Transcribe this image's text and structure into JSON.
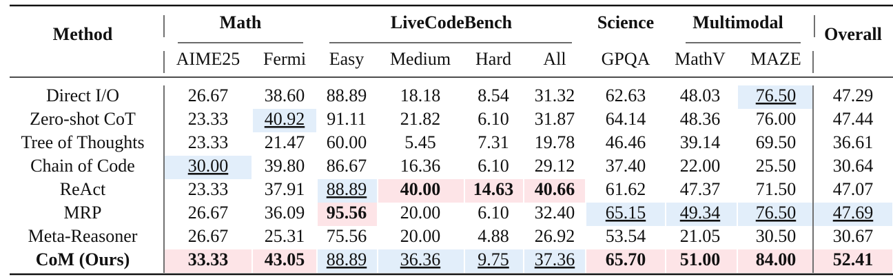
{
  "table": {
    "header": {
      "method": "Method",
      "overall": "Overall",
      "groups": [
        {
          "label": "Math"
        },
        {
          "label": "LiveCodeBench"
        },
        {
          "label": "Science"
        },
        {
          "label": "Multimodal"
        }
      ],
      "columns": [
        "AIME25",
        "Fermi",
        "Easy",
        "Medium",
        "Hard",
        "All",
        "GPQA",
        "MathV",
        "MAZE"
      ]
    },
    "rows": [
      {
        "method": "Direct I/O",
        "values": [
          "26.67",
          "38.60",
          "88.89",
          "18.18",
          "8.54",
          "31.32",
          "62.63",
          "48.03",
          "76.50",
          "47.29"
        ]
      },
      {
        "method": "Zero-shot CoT",
        "values": [
          "23.33",
          "40.92",
          "91.11",
          "21.82",
          "6.10",
          "31.87",
          "64.14",
          "48.36",
          "76.00",
          "47.44"
        ]
      },
      {
        "method": "Tree of Thoughts",
        "values": [
          "23.33",
          "21.47",
          "60.00",
          "5.45",
          "7.31",
          "19.78",
          "46.46",
          "39.14",
          "69.50",
          "36.61"
        ]
      },
      {
        "method": "Chain of Code",
        "values": [
          "30.00",
          "39.80",
          "86.67",
          "16.36",
          "6.10",
          "29.12",
          "37.40",
          "22.00",
          "25.50",
          "30.64"
        ]
      },
      {
        "method": "ReAct",
        "values": [
          "23.33",
          "37.91",
          "88.89",
          "40.00",
          "14.63",
          "40.66",
          "61.62",
          "47.37",
          "71.50",
          "47.07"
        ]
      },
      {
        "method": "MRP",
        "values": [
          "26.67",
          "36.09",
          "95.56",
          "20.00",
          "6.10",
          "32.40",
          "65.15",
          "49.34",
          "76.50",
          "47.69"
        ]
      },
      {
        "method": "Meta-Reasoner",
        "values": [
          "26.67",
          "25.31",
          "75.56",
          "20.00",
          "4.88",
          "26.92",
          "53.54",
          "21.05",
          "30.50",
          "30.67"
        ]
      },
      {
        "method": "CoM (Ours)",
        "values": [
          "33.33",
          "43.05",
          "88.89",
          "36.36",
          "9.75",
          "37.36",
          "65.70",
          "51.00",
          "84.00",
          "52.41"
        ]
      }
    ]
  }
}
